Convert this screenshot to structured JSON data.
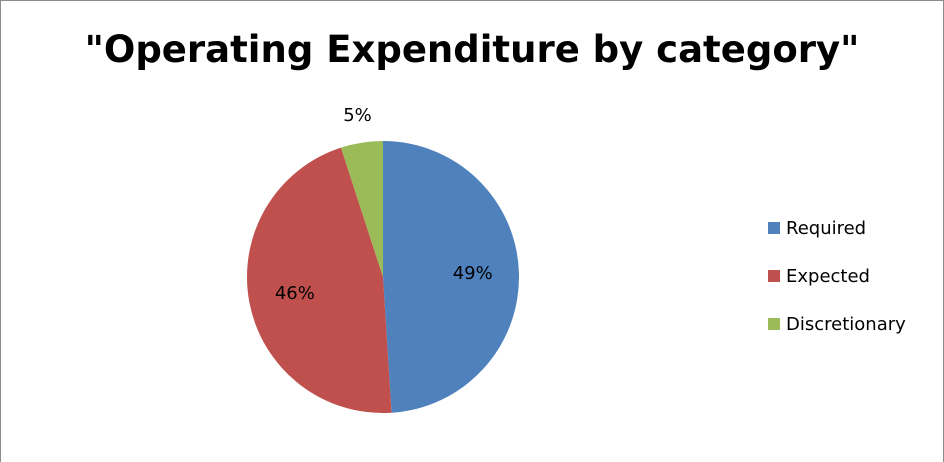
{
  "chart_data": {
    "type": "pie",
    "title": "\"Operating Expenditure by category\"",
    "categories": [
      "Required",
      "Expected",
      "Discretionary"
    ],
    "values": [
      49,
      46,
      5
    ],
    "labels": [
      "49%",
      "46%",
      "5%"
    ],
    "colors": [
      "#4f81bd",
      "#c0504d",
      "#9bbb59"
    ],
    "legend_position": "right",
    "start_angle_deg": 0,
    "direction": "clockwise"
  }
}
